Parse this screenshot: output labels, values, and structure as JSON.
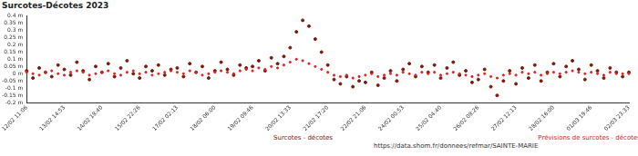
{
  "chart_data": {
    "type": "scatter",
    "title": "Surcotes-Décotes 2023",
    "annotation": "https://data.shom.fr/donnees/refmar/SAINTE-MARIE",
    "categories": [
      "12/02 11:06",
      null,
      null,
      null,
      null,
      null,
      "13/02 14:53",
      null,
      null,
      null,
      null,
      null,
      "14/02 18:40",
      null,
      null,
      null,
      null,
      null,
      "15/02 22:26",
      null,
      null,
      null,
      null,
      null,
      "17/02 02:13",
      null,
      null,
      null,
      null,
      null,
      "18/02 06:00",
      null,
      null,
      null,
      null,
      null,
      "19/02 09:46",
      null,
      null,
      null,
      null,
      null,
      "20/02 13:33",
      null,
      null,
      null,
      null,
      null,
      "21/02 17:20",
      null,
      null,
      null,
      null,
      null,
      "22/02 21:06",
      null,
      null,
      null,
      null,
      null,
      "24/02 00:53",
      null,
      null,
      null,
      null,
      null,
      "25/02 04:40",
      null,
      null,
      null,
      null,
      null,
      "26/02 08:26",
      null,
      null,
      null,
      null,
      null,
      "27/02 12:13",
      null,
      null,
      null,
      null,
      null,
      "28/02 16:00",
      null,
      null,
      null,
      null,
      null,
      "01/03 19:46",
      null,
      null,
      null,
      null,
      null,
      "02/03 23:33"
    ],
    "series": [
      {
        "name": "Surcotes - décotes",
        "color": "#7a1a0a",
        "marker": "circle",
        "values": [
          0.02,
          -0.03,
          0.04,
          0.01,
          -0.02,
          0.06,
          0.03,
          -0.01,
          0.08,
          0.02,
          -0.04,
          0.05,
          0.01,
          0.07,
          -0.02,
          0.04,
          0.09,
          0.0,
          -0.03,
          0.05,
          0.02,
          0.06,
          -0.01,
          0.03,
          0.04,
          -0.02,
          0.07,
          0.01,
          0.05,
          -0.03,
          0.02,
          0.08,
          0.03,
          -0.01,
          0.06,
          0.04,
          0.05,
          0.09,
          0.02,
          0.11,
          0.07,
          0.12,
          0.18,
          0.29,
          0.37,
          0.33,
          0.24,
          0.15,
          0.06,
          -0.04,
          -0.07,
          -0.02,
          -0.09,
          -0.05,
          -0.06,
          0.01,
          -0.08,
          -0.03,
          0.02,
          -0.05,
          0.03,
          0.07,
          -0.02,
          0.05,
          0.01,
          0.06,
          -0.03,
          0.04,
          0.08,
          -0.01,
          0.02,
          -0.06,
          -0.04,
          0.03,
          -0.09,
          -0.15,
          -0.05,
          0.02,
          -0.07,
          0.04,
          -0.03,
          0.06,
          -0.05,
          0.01,
          0.07,
          -0.02,
          0.05,
          0.09,
          0.03,
          -0.04,
          0.06,
          0.02,
          -0.03,
          0.04,
          0.01,
          -0.02,
          0.01
        ]
      },
      {
        "name": "Prévisions de surcotes - décotes",
        "color": "#e02020",
        "marker": "circle",
        "values": [
          0.01,
          0.0,
          -0.01,
          0.01,
          0.02,
          0.0,
          -0.01,
          0.01,
          0.02,
          0.01,
          -0.01,
          0.0,
          0.01,
          0.02,
          0.0,
          -0.01,
          0.01,
          0.02,
          0.0,
          0.01,
          -0.01,
          0.0,
          0.01,
          0.02,
          0.01,
          0.0,
          0.02,
          0.01,
          -0.01,
          0.0,
          0.01,
          0.02,
          0.01,
          0.0,
          0.02,
          0.03,
          0.02,
          0.04,
          0.03,
          0.05,
          0.04,
          0.06,
          0.08,
          0.1,
          0.09,
          0.07,
          0.05,
          0.03,
          0.01,
          -0.01,
          -0.02,
          -0.01,
          -0.03,
          -0.02,
          -0.01,
          0.0,
          -0.02,
          -0.01,
          0.0,
          -0.01,
          0.01,
          0.0,
          -0.01,
          0.01,
          0.0,
          0.01,
          -0.01,
          0.0,
          0.01,
          0.0,
          -0.01,
          -0.02,
          -0.01,
          0.0,
          -0.02,
          -0.03,
          -0.01,
          0.0,
          -0.01,
          0.01,
          0.0,
          0.01,
          -0.01,
          0.0,
          0.01,
          0.0,
          0.01,
          0.02,
          0.01,
          0.0,
          0.01,
          0.0,
          -0.01,
          0.01,
          0.0,
          0.0,
          0.0
        ]
      }
    ],
    "ylim": [
      -0.2,
      0.4
    ],
    "yticks": [
      {
        "value": -0.2,
        "label": "-0.2 m"
      },
      {
        "value": -0.15,
        "label": "-0.15 m"
      },
      {
        "value": -0.1,
        "label": "-0.1 m"
      },
      {
        "value": -0.05,
        "label": "-0.05 m"
      },
      {
        "value": 0,
        "label": "0 m"
      },
      {
        "value": 0.05,
        "label": "0.05 m"
      },
      {
        "value": 0.1,
        "label": "0.1 m"
      },
      {
        "value": 0.15,
        "label": "0.15 m"
      },
      {
        "value": 0.2,
        "label": "0.2 m"
      },
      {
        "value": 0.25,
        "label": "0.25 m"
      },
      {
        "value": 0.3,
        "label": "0.3 m"
      },
      {
        "value": 0.35,
        "label": "0.35 m"
      },
      {
        "value": 0.4,
        "label": "0.4 m"
      }
    ],
    "grid": false,
    "legend": "bottom"
  }
}
